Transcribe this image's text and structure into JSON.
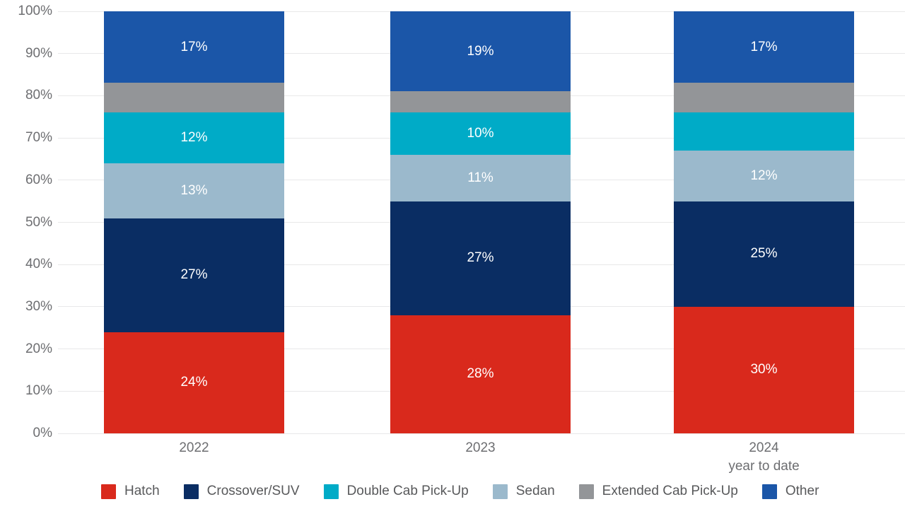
{
  "chart_data": {
    "type": "bar",
    "stacked": true,
    "percent_stacked": true,
    "title": "",
    "xlabel": "",
    "ylabel": "",
    "grid": true,
    "legend_position": "bottom",
    "categories": [
      {
        "label": "2022",
        "sublabel": ""
      },
      {
        "label": "2023",
        "sublabel": ""
      },
      {
        "label": "2024",
        "sublabel": "year to date"
      }
    ],
    "y_axis": {
      "min": 0,
      "max": 100,
      "step": 10,
      "tick_labels": [
        "0%",
        "10%",
        "20%",
        "30%",
        "40%",
        "50%",
        "60%",
        "70%",
        "80%",
        "90%",
        "100%"
      ]
    },
    "stack_order_bottom_to_top": [
      "Hatch",
      "Crossover/SUV",
      "Sedan",
      "Double Cab Pick-Up",
      "Extended Cab Pick-Up",
      "Other"
    ],
    "series": [
      {
        "name": "Hatch",
        "color": "#d9291c",
        "values": [
          24,
          28,
          30
        ],
        "labels": [
          "24%",
          "28%",
          "30%"
        ]
      },
      {
        "name": "Crossover/SUV",
        "color": "#0a2d63",
        "values": [
          27,
          27,
          25
        ],
        "labels": [
          "27%",
          "27%",
          "25%"
        ]
      },
      {
        "name": "Double Cab Pick-Up",
        "color": "#00abc7",
        "values": [
          12,
          10,
          9
        ],
        "labels": [
          "12%",
          "10%",
          ""
        ]
      },
      {
        "name": "Sedan",
        "color": "#9bb9cc",
        "values": [
          13,
          11,
          12
        ],
        "labels": [
          "13%",
          "11%",
          "12%"
        ]
      },
      {
        "name": "Extended Cab Pick-Up",
        "color": "#939598",
        "values": [
          7,
          5,
          7
        ],
        "labels": [
          "",
          "",
          ""
        ]
      },
      {
        "name": "Other",
        "color": "#1b56a8",
        "values": [
          17,
          19,
          17
        ],
        "labels": [
          "17%",
          "19%",
          "17%"
        ]
      }
    ],
    "legend": [
      "Hatch",
      "Crossover/SUV",
      "Double Cab Pick-Up",
      "Sedan",
      "Extended Cab Pick-Up",
      "Other"
    ]
  },
  "style_colors": {
    "gridline": "#e8e8e9",
    "axis_text": "#6d6e71",
    "legend_text": "#58595b",
    "bar_value_text": "#ffffff",
    "background": "#ffffff"
  }
}
